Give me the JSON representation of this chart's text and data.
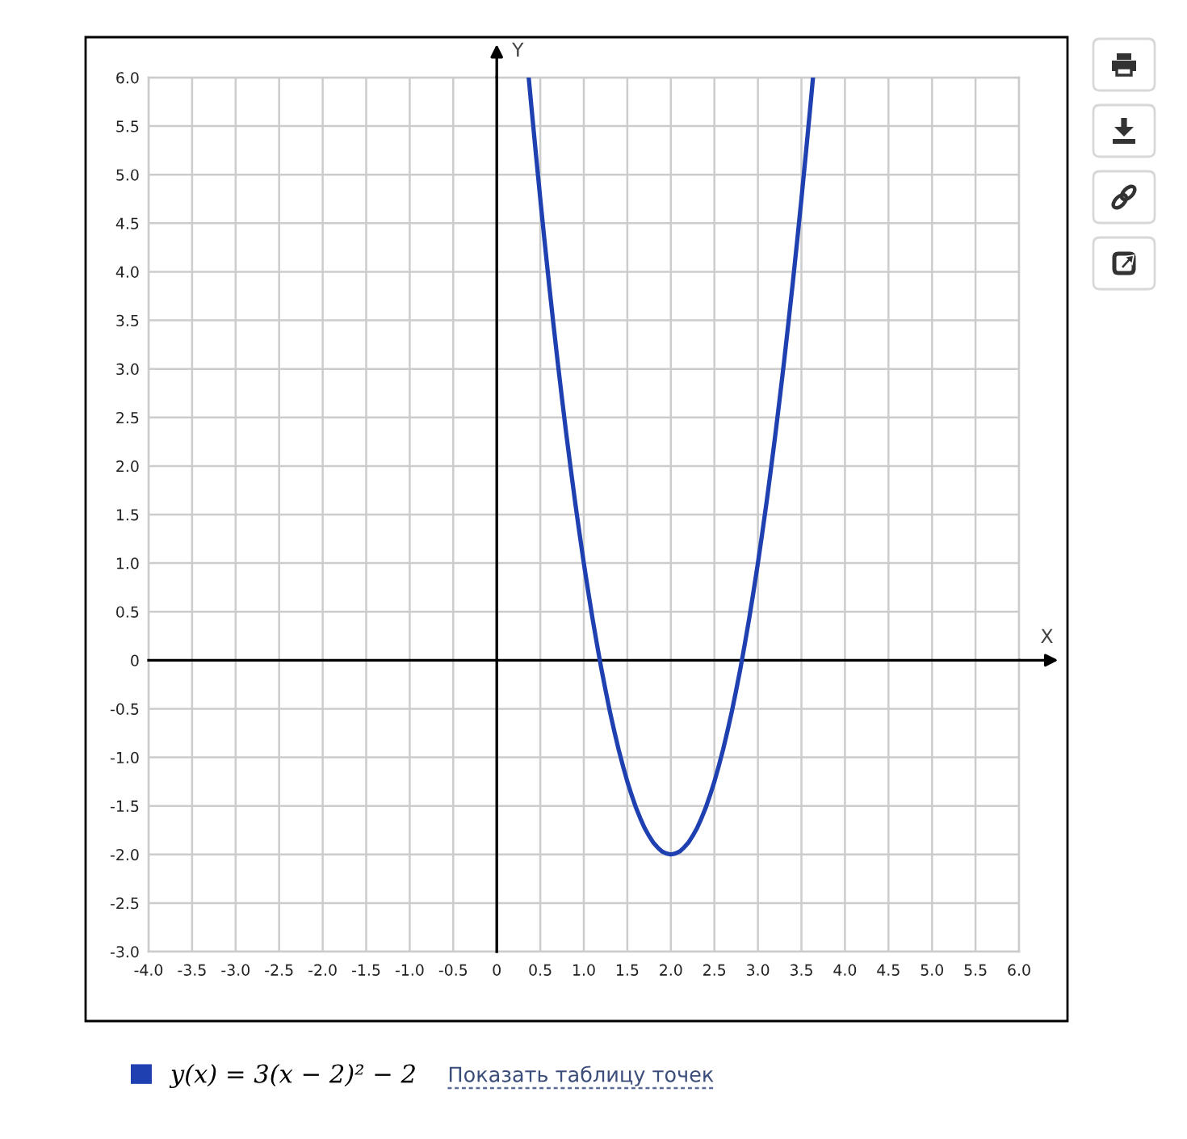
{
  "chart_data": {
    "type": "line",
    "xlabel": "X",
    "ylabel": "Y",
    "x": [
      0.367,
      0.4,
      0.45,
      0.5,
      0.55,
      0.6,
      0.65,
      0.7,
      0.75,
      0.8,
      0.85,
      0.9,
      0.95,
      1.0,
      1.05,
      1.1,
      1.15,
      1.2,
      1.25,
      1.3,
      1.35,
      1.4,
      1.45,
      1.5,
      1.55,
      1.6,
      1.65,
      1.7,
      1.75,
      1.8,
      1.85,
      1.9,
      1.95,
      2.0,
      2.05,
      2.1,
      2.15,
      2.2,
      2.25,
      2.3,
      2.35,
      2.4,
      2.45,
      2.5,
      2.55,
      2.6,
      2.65,
      2.7,
      2.75,
      2.8,
      2.85,
      2.9,
      2.95,
      3.0,
      3.05,
      3.1,
      3.15,
      3.2,
      3.25,
      3.3,
      3.35,
      3.4,
      3.45,
      3.5,
      3.55,
      3.6,
      3.633
    ],
    "series": [
      {
        "name": "y(x) = 3(x − 2)² − 2",
        "color": "#1f40b0",
        "values": [
          6.0,
          5.68,
          5.21,
          4.75,
          4.31,
          3.88,
          3.47,
          3.07,
          2.69,
          2.32,
          1.97,
          1.63,
          1.31,
          1.0,
          0.71,
          0.43,
          0.17,
          -0.08,
          -0.31,
          -0.53,
          -0.73,
          -0.92,
          -1.09,
          -1.25,
          -1.39,
          -1.52,
          -1.63,
          -1.73,
          -1.81,
          -1.88,
          -1.93,
          -1.97,
          -1.99,
          -2.0,
          -1.99,
          -1.97,
          -1.93,
          -1.88,
          -1.81,
          -1.73,
          -1.63,
          -1.52,
          -1.39,
          -1.25,
          -1.09,
          -0.92,
          -0.73,
          -0.53,
          -0.31,
          -0.08,
          0.17,
          0.43,
          0.71,
          1.0,
          1.31,
          1.63,
          1.97,
          2.32,
          2.69,
          3.07,
          3.47,
          3.88,
          4.31,
          4.75,
          5.21,
          5.68,
          6.0
        ]
      }
    ],
    "xlim": [
      -4,
      6
    ],
    "ylim": [
      -3,
      6
    ],
    "xticks": [
      {
        "value": -4,
        "label": "-4.0"
      },
      -3.5,
      {
        "value": -3,
        "label": "-3.0"
      },
      -2.5,
      {
        "value": -2,
        "label": "-2.0"
      },
      -1.5,
      {
        "value": -1,
        "label": "-1.0"
      },
      -0.5,
      0,
      0.5,
      {
        "value": 1,
        "label": "1.0"
      },
      1.5,
      {
        "value": 2,
        "label": "2.0"
      },
      2.5,
      {
        "value": 3,
        "label": "3.0"
      },
      3.5,
      {
        "value": 4,
        "label": "4.0"
      },
      4.5,
      {
        "value": 5,
        "label": "5.0"
      },
      5.5,
      {
        "value": 6,
        "label": "6.0"
      }
    ],
    "yticks": [
      {
        "value": -3,
        "label": "-3.0"
      },
      -2.5,
      {
        "value": -2,
        "label": "-2.0"
      },
      -1.5,
      {
        "value": -1,
        "label": "-1.0"
      },
      -0.5,
      0,
      0.5,
      {
        "value": 1,
        "label": "1.0"
      },
      1.5,
      {
        "value": 2,
        "label": "2.0"
      },
      2.5,
      {
        "value": 3,
        "label": "3.0"
      },
      3.5,
      {
        "value": 4,
        "label": "4.0"
      },
      4.5,
      {
        "value": 5,
        "label": "5.0"
      },
      5.5,
      {
        "value": 6,
        "label": "6.0"
      }
    ],
    "grid": true,
    "legend": "bottom",
    "annotations": [
      "Показать таблицу точек"
    ]
  }
}
